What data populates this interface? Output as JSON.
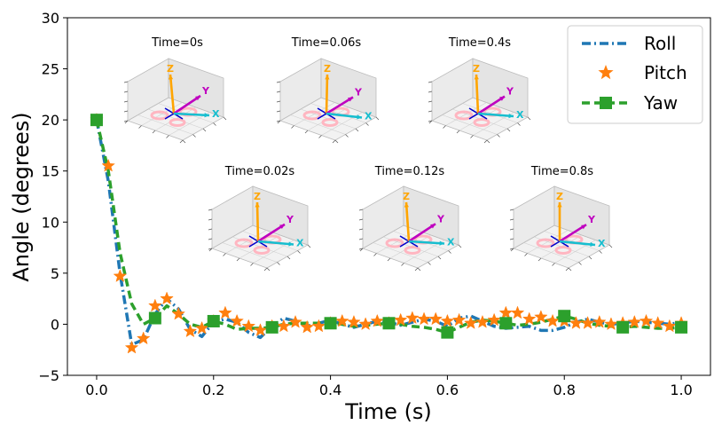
{
  "chart_data": {
    "type": "line",
    "title": "",
    "xlabel": "Time (s)",
    "ylabel": "Angle (degrees)",
    "xlim": [
      -0.05,
      1.05
    ],
    "ylim": [
      -5,
      30
    ],
    "xticks": [
      0.0,
      0.2,
      0.4,
      0.6,
      0.8,
      1.0
    ],
    "xtick_labels": [
      "0.0",
      "0.2",
      "0.4",
      "0.6",
      "0.8",
      "1.0"
    ],
    "yticks": [
      -5,
      0,
      5,
      10,
      15,
      20,
      25,
      30
    ],
    "ytick_labels": [
      "−5",
      "0",
      "5",
      "10",
      "15",
      "20",
      "25",
      "30"
    ],
    "legend_position": "top-right",
    "series": [
      {
        "name": "Roll",
        "style": "dashdot",
        "color": "#1f77b4",
        "x": [
          0.0,
          0.02,
          0.04,
          0.06,
          0.08,
          0.1,
          0.12,
          0.14,
          0.16,
          0.18,
          0.2,
          0.22,
          0.24,
          0.26,
          0.28,
          0.3,
          0.32,
          0.34,
          0.36,
          0.38,
          0.4,
          0.42,
          0.44,
          0.46,
          0.48,
          0.5,
          0.52,
          0.54,
          0.56,
          0.58,
          0.6,
          0.62,
          0.64,
          0.66,
          0.68,
          0.7,
          0.72,
          0.74,
          0.76,
          0.78,
          0.8,
          0.82,
          0.84,
          0.86,
          0.88,
          0.9,
          0.92,
          0.94,
          0.96,
          0.98,
          1.0
        ],
        "y": [
          20.0,
          14.0,
          5.0,
          -2.0,
          -1.5,
          1.0,
          2.5,
          1.5,
          -0.5,
          -1.2,
          0.2,
          0.5,
          0.2,
          -0.8,
          -1.3,
          -0.2,
          0.6,
          0.3,
          -0.2,
          0.1,
          0.4,
          0.0,
          -0.3,
          0.0,
          0.3,
          0.2,
          -0.1,
          0.2,
          0.5,
          0.3,
          -0.2,
          0.6,
          0.8,
          0.3,
          -0.2,
          -0.4,
          -0.3,
          -0.2,
          -0.6,
          -0.6,
          -0.3,
          0.2,
          0.5,
          0.2,
          0.0,
          0.1,
          0.3,
          0.2,
          0.1,
          0.0,
          0.2
        ]
      },
      {
        "name": "Pitch",
        "style": "star-markers",
        "color": "#ff7f0e",
        "x": [
          0.0,
          0.02,
          0.04,
          0.06,
          0.08,
          0.1,
          0.12,
          0.14,
          0.16,
          0.18,
          0.2,
          0.22,
          0.24,
          0.26,
          0.28,
          0.3,
          0.32,
          0.34,
          0.36,
          0.38,
          0.4,
          0.42,
          0.44,
          0.46,
          0.48,
          0.5,
          0.52,
          0.54,
          0.56,
          0.58,
          0.6,
          0.62,
          0.64,
          0.66,
          0.68,
          0.7,
          0.72,
          0.74,
          0.76,
          0.78,
          0.8,
          0.82,
          0.84,
          0.86,
          0.88,
          0.9,
          0.92,
          0.94,
          0.96,
          0.98,
          1.0
        ],
        "y": [
          20.0,
          15.5,
          4.7,
          -2.3,
          -1.4,
          1.8,
          2.5,
          1.0,
          -0.7,
          -0.4,
          0.3,
          1.1,
          0.3,
          -0.2,
          -0.6,
          -0.2,
          -0.2,
          0.2,
          -0.3,
          -0.2,
          0.1,
          0.3,
          0.2,
          0.0,
          0.3,
          0.1,
          0.4,
          0.6,
          0.5,
          0.5,
          0.3,
          0.4,
          0.1,
          0.2,
          0.4,
          1.1,
          1.1,
          0.5,
          0.7,
          0.3,
          0.3,
          0.1,
          0.1,
          0.2,
          0.0,
          0.1,
          0.2,
          0.3,
          0.1,
          -0.2,
          0.1
        ]
      },
      {
        "name": "Yaw",
        "style": "dashed-square-markers",
        "color": "#2ca02c",
        "x": [
          0.0,
          0.02,
          0.04,
          0.06,
          0.08,
          0.1,
          0.12,
          0.14,
          0.16,
          0.18,
          0.2,
          0.22,
          0.24,
          0.26,
          0.28,
          0.3,
          0.32,
          0.34,
          0.36,
          0.38,
          0.4,
          0.42,
          0.44,
          0.46,
          0.48,
          0.5,
          0.52,
          0.54,
          0.56,
          0.58,
          0.6,
          0.62,
          0.64,
          0.66,
          0.68,
          0.7,
          0.72,
          0.74,
          0.76,
          0.78,
          0.8,
          0.82,
          0.84,
          0.86,
          0.88,
          0.9,
          0.92,
          0.94,
          0.96,
          0.98,
          1.0
        ],
        "y": [
          20.0,
          15.0,
          7.0,
          2.0,
          0.0,
          0.6,
          1.8,
          1.0,
          0.0,
          -0.3,
          0.3,
          0.0,
          -0.5,
          -0.4,
          -0.4,
          -0.3,
          0.0,
          0.1,
          0.1,
          0.1,
          0.1,
          0.0,
          -0.2,
          -0.1,
          0.0,
          0.1,
          0.0,
          -0.2,
          -0.3,
          -0.5,
          -0.8,
          -0.3,
          0.2,
          0.4,
          0.3,
          0.1,
          -0.1,
          0.0,
          0.2,
          0.5,
          0.8,
          0.5,
          0.1,
          -0.1,
          -0.2,
          -0.3,
          -0.2,
          -0.3,
          -0.4,
          -0.4,
          -0.3
        ],
        "marker_x": [
          0.0,
          0.1,
          0.2,
          0.3,
          0.4,
          0.5,
          0.6,
          0.7,
          0.8,
          0.9,
          1.0
        ],
        "marker_y": [
          20.0,
          0.6,
          0.3,
          -0.3,
          0.1,
          0.1,
          -0.8,
          0.1,
          0.8,
          -0.3,
          -0.3
        ]
      }
    ],
    "insets": [
      {
        "title": "Time=0s"
      },
      {
        "title": "Time=0.06s"
      },
      {
        "title": "Time=0.4s"
      },
      {
        "title": "Time=0.02s"
      },
      {
        "title": "Time=0.12s"
      },
      {
        "title": "Time=0.8s"
      }
    ],
    "inset_axis_letters": {
      "x": "X",
      "y": "Y",
      "z": "Z"
    },
    "inset_colors": {
      "x": "#17becf",
      "y": "#bf00bf",
      "z": "#ffa500",
      "base": "#0000cc",
      "body": "#ffb6c1"
    }
  }
}
